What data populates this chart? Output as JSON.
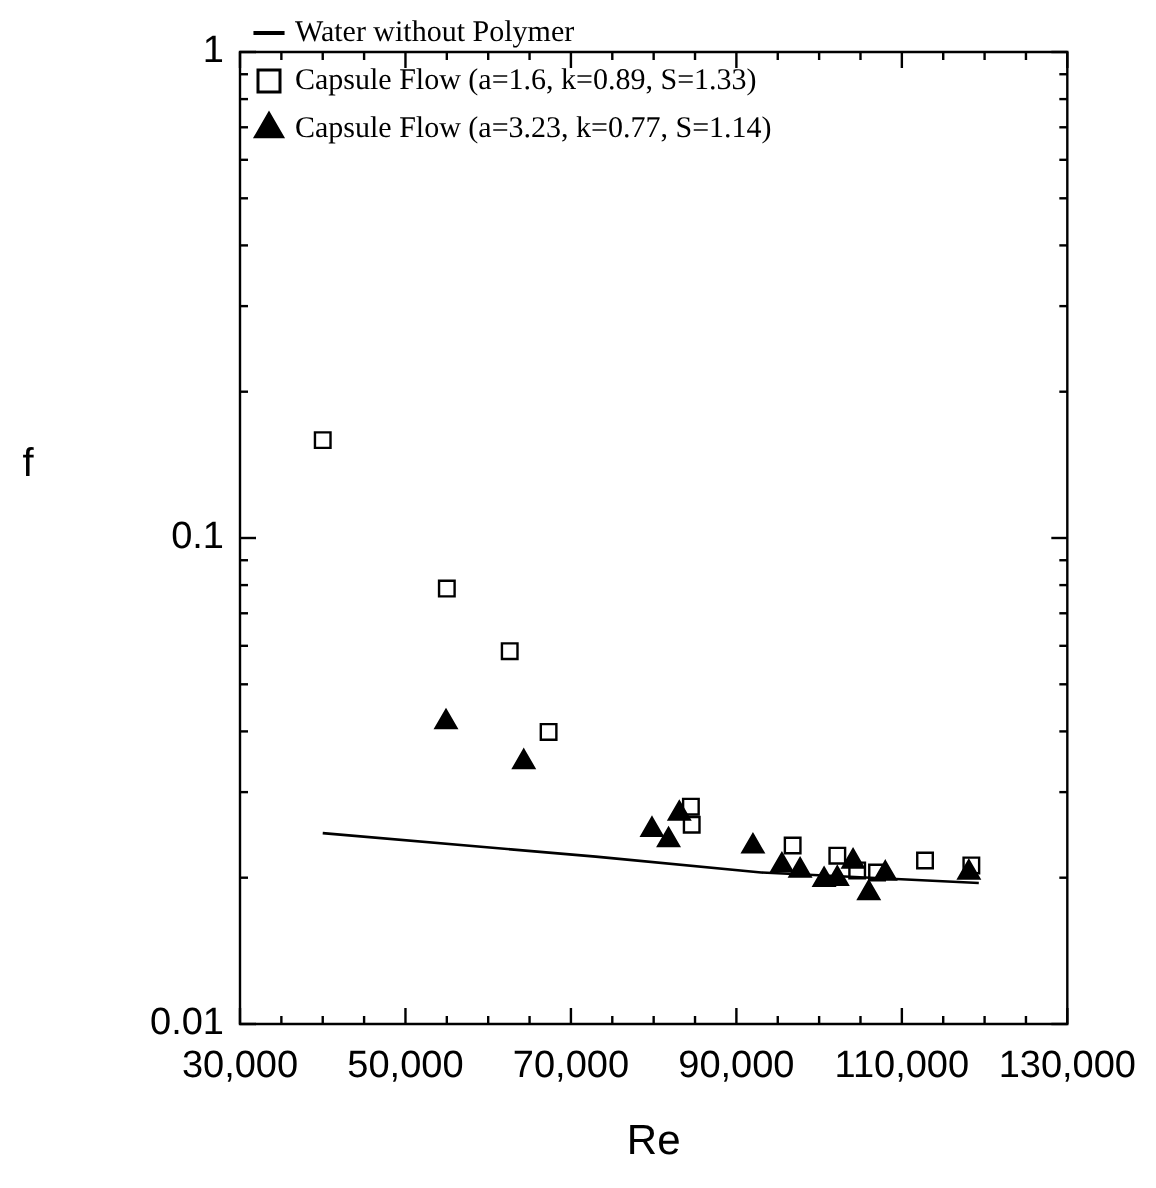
{
  "chart_data": {
    "type": "scatter",
    "xlabel": "Re",
    "ylabel": "f",
    "log": "y",
    "grid": false,
    "legend": "top left",
    "xlim": [
      30000,
      130000
    ],
    "xticks": [
      {
        "value": 30000,
        "label": "30,000"
      },
      {
        "value": 35000,
        "label": null
      },
      {
        "value": 40000,
        "label": null
      },
      {
        "value": 45000,
        "label": null
      },
      {
        "value": 50000,
        "label": "50,000"
      },
      {
        "value": 55000,
        "label": null
      },
      {
        "value": 60000,
        "label": null
      },
      {
        "value": 65000,
        "label": null
      },
      {
        "value": 70000,
        "label": "70,000"
      },
      {
        "value": 75000,
        "label": null
      },
      {
        "value": 80000,
        "label": null
      },
      {
        "value": 85000,
        "label": null
      },
      {
        "value": 90000,
        "label": "90,000"
      },
      {
        "value": 95000,
        "label": null
      },
      {
        "value": 100000,
        "label": null
      },
      {
        "value": 105000,
        "label": null
      },
      {
        "value": 110000,
        "label": "110,000"
      },
      {
        "value": 115000,
        "label": null
      },
      {
        "value": 120000,
        "label": null
      },
      {
        "value": 125000,
        "label": null
      },
      {
        "value": 130000,
        "label": "130,000"
      }
    ],
    "ylim": [
      0.01,
      1
    ],
    "yticks": [
      0.01,
      {
        "value": 0.02,
        "label": null
      },
      {
        "value": 0.03,
        "label": null
      },
      {
        "value": 0.04,
        "label": null
      },
      {
        "value": 0.05,
        "label": null
      },
      {
        "value": 0.06,
        "label": null
      },
      {
        "value": 0.07,
        "label": null
      },
      {
        "value": 0.08,
        "label": null
      },
      {
        "value": 0.09,
        "label": null
      },
      0.1,
      {
        "value": 0.2,
        "label": null
      },
      {
        "value": 0.3,
        "label": null
      },
      {
        "value": 0.4,
        "label": null
      },
      {
        "value": 0.5,
        "label": null
      },
      {
        "value": 0.6,
        "label": null
      },
      {
        "value": 0.7,
        "label": null
      },
      {
        "value": 0.8,
        "label": null
      },
      {
        "value": 0.9,
        "label": null
      },
      1
    ],
    "series": [
      {
        "name": "Water without Polymer",
        "type": "line",
        "color": "#000000",
        "marker": "none",
        "line_style": "solid",
        "x": [
          40000,
          73000,
          93000,
          119300
        ],
        "values": [
          0.0247,
          0.0221,
          0.0205,
          0.0195
        ]
      },
      {
        "name": "Capsule Flow (a=1.6, k=0.89, S=1.33)",
        "type": "scatter",
        "color": "#000000",
        "marker": "square",
        "x": [
          40000,
          55000,
          62600,
          67300,
          84500,
          84600,
          96800,
          102200,
          104600,
          107000,
          112800,
          118400
        ],
        "values": [
          0.159,
          0.0787,
          0.0585,
          0.0399,
          0.028,
          0.0257,
          0.0233,
          0.0222,
          0.0207,
          0.0205,
          0.0217,
          0.0212
        ]
      },
      {
        "name": "Capsule Flow (a=3.23, k=0.77, S=1.14)",
        "type": "scatter",
        "color": "#000000",
        "marker": "triangle",
        "x": [
          54900,
          64300,
          79800,
          81800,
          83100,
          92000,
          95500,
          97700,
          100600,
          102200,
          104100,
          106000,
          108000,
          118100
        ],
        "values": [
          0.0418,
          0.0346,
          0.0251,
          0.0239,
          0.0271,
          0.0232,
          0.0212,
          0.0207,
          0.0198,
          0.0199,
          0.0216,
          0.0186,
          0.0204,
          0.0205
        ]
      }
    ]
  }
}
